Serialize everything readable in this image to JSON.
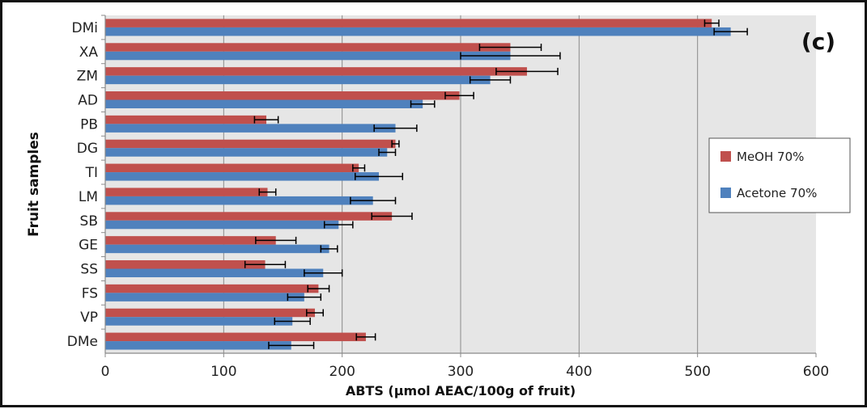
{
  "chart_data": {
    "type": "bar",
    "orientation": "horizontal",
    "panel_label": "(c)",
    "title": "",
    "xlabel": "ABTS (µmol AEAC/100g of fruit)",
    "ylabel": "Fruit samples",
    "xlim": [
      0,
      600
    ],
    "xticks": [
      0,
      100,
      200,
      300,
      400,
      500,
      600
    ],
    "grid": "vertical major gridlines",
    "legend_position": "right",
    "categories": [
      "DMi",
      "XA",
      "ZM",
      "AD",
      "PB",
      "DG",
      "TI",
      "LM",
      "SB",
      "GE",
      "SS",
      "FS",
      "VP",
      "DMe"
    ],
    "series": [
      {
        "name": "MeOH 70%",
        "color": "#c0504d",
        "values": [
          512,
          342,
          356,
          299,
          136,
          245,
          214,
          137,
          242,
          144,
          135,
          180,
          177,
          220
        ],
        "errors": [
          6,
          26,
          26,
          12,
          10,
          3,
          5,
          7,
          17,
          17,
          17,
          9,
          7,
          8
        ]
      },
      {
        "name": "Acetone 70%",
        "color": "#4f81bd",
        "values": [
          528,
          342,
          325,
          268,
          245,
          238,
          231,
          226,
          197,
          189,
          184,
          168,
          158,
          157
        ],
        "errors": [
          14,
          42,
          17,
          10,
          18,
          7,
          20,
          19,
          12,
          7,
          16,
          14,
          15,
          19
        ]
      }
    ]
  }
}
